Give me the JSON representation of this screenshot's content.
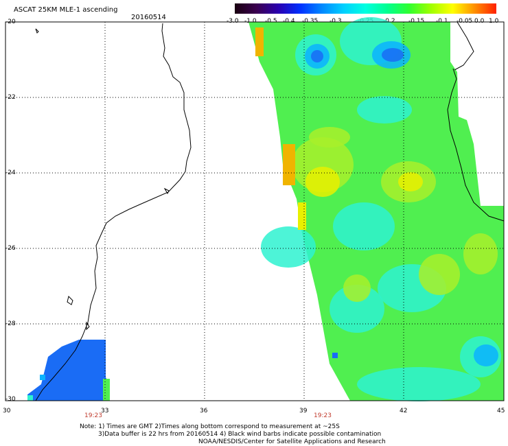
{
  "header": {
    "title": "ASCAT 25KM MLE-1 ascending",
    "date": "20160514"
  },
  "colorbar": {
    "labels": [
      "-3.0",
      "-1.0",
      "-0.5",
      "-0.4",
      "-0.35",
      "-0.3",
      "-0.25",
      "-0.2",
      "-0.15",
      "-0.1",
      "-0.05",
      "0.0",
      "1.0"
    ],
    "colors": [
      "#1a0010",
      "#3b0050",
      "#2a00b0",
      "#0030ff",
      "#0088ff",
      "#00d0ff",
      "#00ffe0",
      "#00ff90",
      "#30ff30",
      "#a0ff00",
      "#ffff00",
      "#ff9000",
      "#ff2000"
    ]
  },
  "axes": {
    "lat_labels": [
      "-20",
      "-22",
      "-24",
      "-26",
      "-28",
      "-30"
    ],
    "lon_labels": [
      "30",
      "33",
      "36",
      "39",
      "42",
      "45"
    ],
    "time_labels": [
      "19:23",
      "19:23"
    ]
  },
  "notes": [
    "Note: 1) Times are GMT 2)Times along bottom correspond to measurement at ~25S",
    "3)Data buffer is 22 hrs from 20160514 4) Black wind barbs indicate possible contamination",
    "NOAA/NESDIS/Center for Satellite Applications and Research"
  ]
}
